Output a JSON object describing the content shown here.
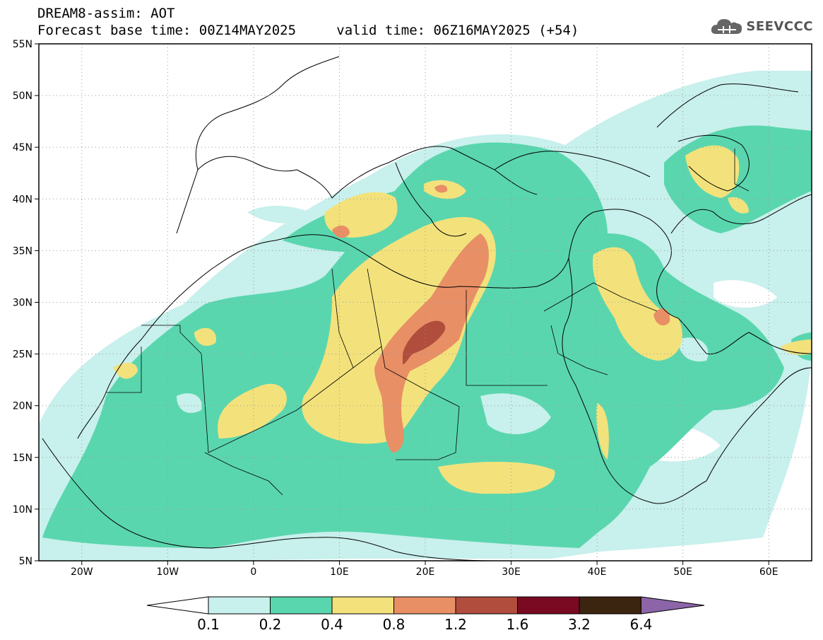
{
  "header": {
    "title": "DREAM8-assim: AOT",
    "base_time_label": "Forecast base time: 00Z14MAY2025",
    "valid_time_label": "valid time: 06Z16MAY2025 (+54)"
  },
  "logo": {
    "text": "SEEVCCC",
    "icon": "cloud-icon"
  },
  "map": {
    "lon_range": [
      -25,
      65
    ],
    "lat_range": [
      5,
      55
    ],
    "lon_ticks": [
      {
        "value": -20,
        "label": "20W"
      },
      {
        "value": -10,
        "label": "10W"
      },
      {
        "value": 0,
        "label": "0"
      },
      {
        "value": 10,
        "label": "10E"
      },
      {
        "value": 20,
        "label": "20E"
      },
      {
        "value": 30,
        "label": "30E"
      },
      {
        "value": 40,
        "label": "40E"
      },
      {
        "value": 50,
        "label": "50E"
      },
      {
        "value": 60,
        "label": "60E"
      }
    ],
    "lat_ticks": [
      {
        "value": 55,
        "label": "55N"
      },
      {
        "value": 50,
        "label": "50N"
      },
      {
        "value": 45,
        "label": "45N"
      },
      {
        "value": 40,
        "label": "40N"
      },
      {
        "value": 35,
        "label": "35N"
      },
      {
        "value": 30,
        "label": "30N"
      },
      {
        "value": 25,
        "label": "25N"
      },
      {
        "value": 20,
        "label": "20N"
      },
      {
        "value": 15,
        "label": "15N"
      },
      {
        "value": 10,
        "label": "10N"
      },
      {
        "value": 5,
        "label": "5N"
      }
    ],
    "grid": "dotted"
  },
  "colorbar": {
    "colors": [
      "#c8f0ec",
      "#5ad6ae",
      "#f3e27c",
      "#e88f66",
      "#b04d3c",
      "#7a0a22",
      "#3b2410",
      "#8c65a8"
    ],
    "labels": [
      "0.1",
      "0.2",
      "0.4",
      "0.8",
      "1.2",
      "1.6",
      "3.2",
      "6.4"
    ]
  }
}
